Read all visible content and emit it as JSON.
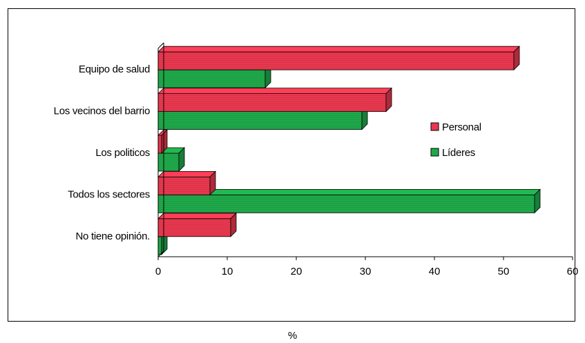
{
  "chart_data": {
    "type": "bar",
    "orientation": "horizontal",
    "categories": [
      "Equipo de salud",
      "Los vecinos del barrio",
      "Los politicos",
      "Todos los sectores",
      "No tiene opinión."
    ],
    "series": [
      {
        "name": "Personal",
        "color": "#e8384f",
        "values": [
          51.5,
          33,
          0.5,
          7.5,
          10.5
        ]
      },
      {
        "name": "Líderes",
        "color": "#1fa84a",
        "values": [
          15.5,
          29.5,
          3,
          54.5,
          0.5
        ]
      }
    ],
    "xticks": [
      "0",
      "10",
      "20",
      "30",
      "40",
      "50",
      "60"
    ],
    "xlim": [
      0,
      60
    ],
    "xlabel": "%",
    "legend": "right",
    "grid": false
  }
}
